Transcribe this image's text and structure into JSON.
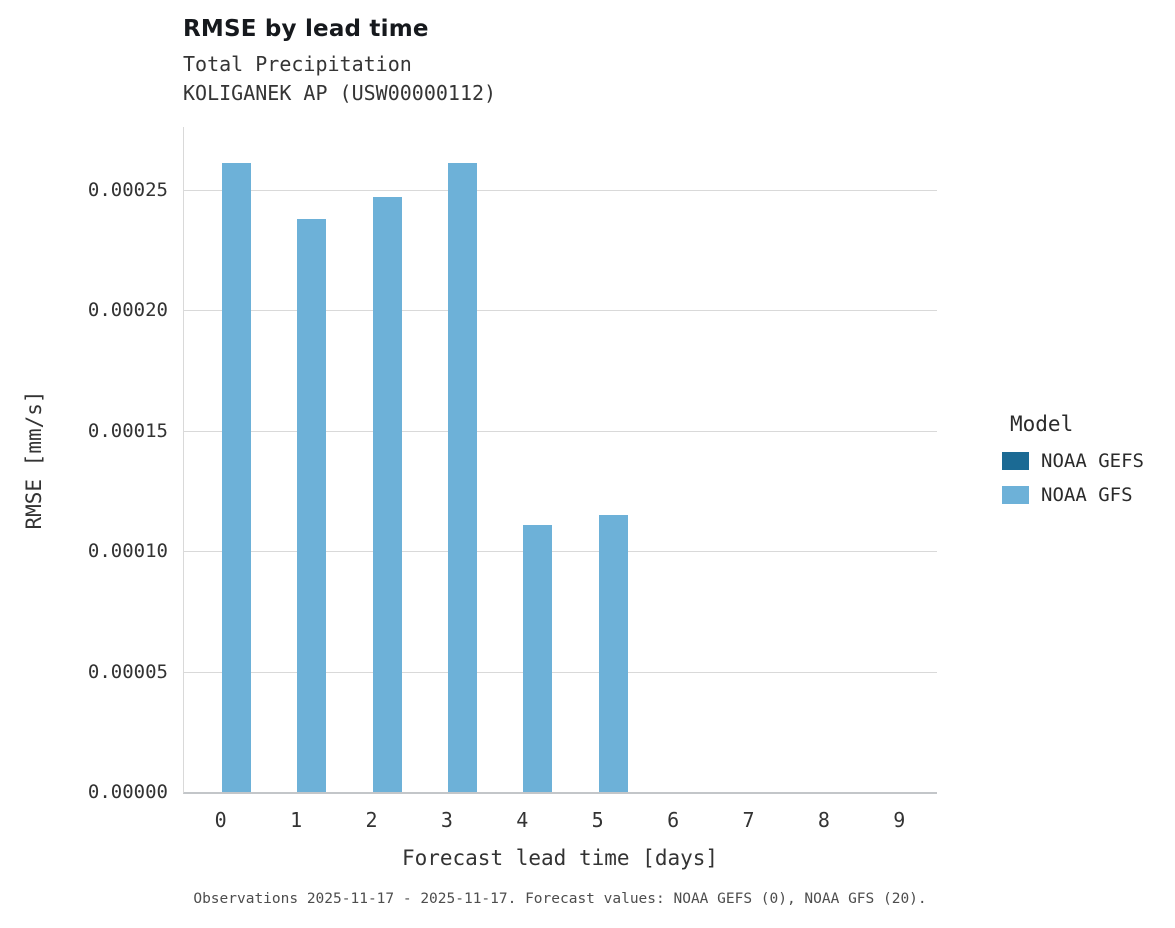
{
  "chart_data": {
    "type": "bar",
    "title": "RMSE by lead time",
    "subtitle_lines": [
      "Total Precipitation",
      "KOLIGANEK AP (USW00000112)"
    ],
    "xlabel": "Forecast lead time [days]",
    "ylabel": "RMSE [mm/s]",
    "categories": [
      "0",
      "1",
      "2",
      "3",
      "4",
      "5",
      "6",
      "7",
      "8",
      "9"
    ],
    "series": [
      {
        "name": "NOAA GEFS",
        "color": "#1b6a94",
        "values": [
          0,
          0,
          0,
          0,
          0,
          0,
          0,
          0,
          0,
          0
        ]
      },
      {
        "name": "NOAA GFS",
        "color": "#6db1d8",
        "values": [
          0.000261,
          0.000238,
          0.000247,
          0.000261,
          0.000111,
          0.000115,
          0,
          0,
          0,
          0
        ]
      }
    ],
    "ylim": [
      0,
      0.000276
    ],
    "yticks": [
      {
        "value": 0.0,
        "label": "0.00000"
      },
      {
        "value": 5e-05,
        "label": "0.00005"
      },
      {
        "value": 0.0001,
        "label": "0.00010"
      },
      {
        "value": 0.00015,
        "label": "0.00015"
      },
      {
        "value": 0.0002,
        "label": "0.00020"
      },
      {
        "value": 0.00025,
        "label": "0.00025"
      }
    ],
    "grid": "horizontal",
    "legend_title": "Model",
    "legend_position": "right",
    "caption": "Observations 2025-11-17 - 2025-11-17. Forecast values: NOAA GEFS (0), NOAA GFS (20)."
  }
}
